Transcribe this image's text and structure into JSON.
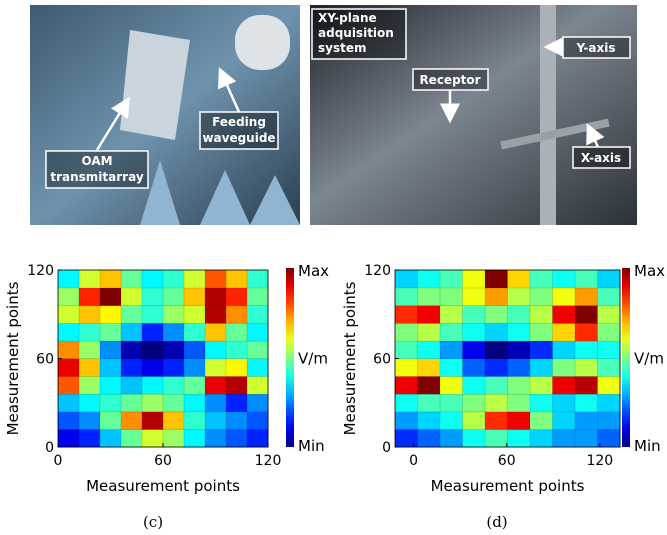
{
  "photos": [
    {
      "labels": [
        {
          "lines": [
            "OAM",
            "transmitarray"
          ]
        },
        {
          "lines": [
            "Feeding",
            "waveguide"
          ]
        }
      ]
    },
    {
      "labels": [
        {
          "lines": [
            "XY-plane",
            "adquisition",
            "system"
          ]
        },
        {
          "lines": [
            "Receptor"
          ]
        },
        {
          "lines": [
            "Y-axis"
          ]
        },
        {
          "lines": [
            "X-axis"
          ]
        }
      ]
    }
  ],
  "chart_data": [
    {
      "type": "heatmap",
      "caption": "(c)",
      "xlabel": "Measurement points",
      "ylabel": "Measurement points",
      "xlim": [
        0,
        120
      ],
      "ylim": [
        0,
        120
      ],
      "xticks": [
        0,
        60,
        120
      ],
      "yticks": [
        0,
        60,
        120
      ],
      "colorbar_labels": [
        "Max",
        "V/m",
        "Min"
      ],
      "z": [
        [
          0.15,
          0.2,
          0.35,
          0.5,
          0.6,
          0.55,
          0.4,
          0.3,
          0.25,
          0.2
        ],
        [
          0.25,
          0.3,
          0.5,
          0.75,
          0.95,
          0.7,
          0.45,
          0.35,
          0.3,
          0.25
        ],
        [
          0.35,
          0.4,
          0.45,
          0.5,
          0.55,
          0.5,
          0.4,
          0.3,
          0.2,
          0.3
        ],
        [
          0.8,
          0.55,
          0.4,
          0.35,
          0.4,
          0.45,
          0.5,
          0.9,
          0.95,
          0.6
        ],
        [
          0.9,
          0.7,
          0.35,
          0.2,
          0.15,
          0.2,
          0.3,
          0.6,
          0.65,
          0.4
        ],
        [
          0.75,
          0.55,
          0.3,
          0.1,
          0.05,
          0.1,
          0.25,
          0.4,
          0.45,
          0.5
        ],
        [
          0.4,
          0.45,
          0.5,
          0.35,
          0.2,
          0.3,
          0.45,
          0.7,
          0.5,
          0.4
        ],
        [
          0.6,
          0.7,
          0.65,
          0.5,
          0.45,
          0.55,
          0.6,
          0.95,
          0.75,
          0.45
        ],
        [
          0.55,
          0.85,
          1.0,
          0.6,
          0.45,
          0.5,
          0.7,
          0.95,
          0.85,
          0.5
        ],
        [
          0.4,
          0.6,
          0.7,
          0.5,
          0.4,
          0.45,
          0.6,
          0.8,
          0.7,
          0.45
        ]
      ]
    },
    {
      "type": "heatmap",
      "caption": "(d)",
      "xlabel": "Measurement points",
      "ylabel": "Measurement points",
      "xlim": [
        -12,
        133
      ],
      "ylim": [
        0,
        120
      ],
      "xticks": [
        0,
        60,
        120
      ],
      "yticks": [
        0,
        60,
        120
      ],
      "colorbar_labels": [
        "Max",
        "V/m",
        "Min"
      ],
      "z": [
        [
          0.2,
          0.25,
          0.3,
          0.4,
          0.45,
          0.4,
          0.35,
          0.3,
          0.3,
          0.25
        ],
        [
          0.3,
          0.35,
          0.4,
          0.55,
          0.8,
          0.85,
          0.5,
          0.35,
          0.3,
          0.3
        ],
        [
          0.4,
          0.45,
          0.45,
          0.5,
          0.55,
          0.5,
          0.4,
          0.35,
          0.4,
          0.35
        ],
        [
          0.85,
          0.95,
          0.6,
          0.4,
          0.45,
          0.5,
          0.55,
          0.85,
          0.9,
          0.6
        ],
        [
          0.6,
          0.65,
          0.4,
          0.25,
          0.2,
          0.25,
          0.35,
          0.5,
          0.55,
          0.45
        ],
        [
          0.45,
          0.4,
          0.3,
          0.15,
          0.05,
          0.1,
          0.2,
          0.35,
          0.4,
          0.4
        ],
        [
          0.5,
          0.55,
          0.45,
          0.4,
          0.35,
          0.4,
          0.5,
          0.65,
          0.8,
          0.5
        ],
        [
          0.8,
          0.85,
          0.55,
          0.45,
          0.5,
          0.45,
          0.55,
          0.85,
          0.95,
          0.55
        ],
        [
          0.45,
          0.5,
          0.5,
          0.6,
          0.7,
          0.55,
          0.5,
          0.6,
          0.7,
          0.45
        ],
        [
          0.35,
          0.4,
          0.45,
          0.6,
          0.95,
          0.65,
          0.45,
          0.4,
          0.45,
          0.35
        ]
      ]
    }
  ]
}
